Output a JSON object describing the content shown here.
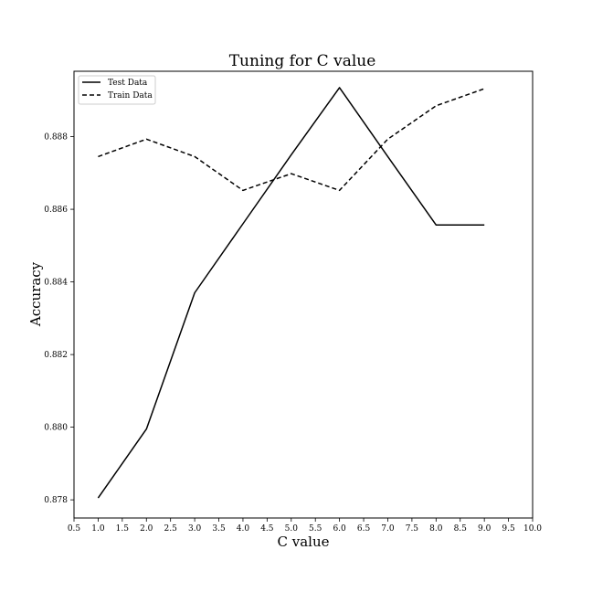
{
  "chart_data": {
    "type": "line",
    "title": "Tuning for C value",
    "xlabel": "C value",
    "ylabel": "Accuracy",
    "xlim": [
      0.5,
      10.0
    ],
    "ylim": [
      0.8775,
      0.8898
    ],
    "xticks": [
      "0.5",
      "1.0",
      "1.5",
      "2.0",
      "2.5",
      "3.0",
      "3.5",
      "4.0",
      "4.5",
      "5.0",
      "5.5",
      "6.0",
      "6.5",
      "7.0",
      "7.5",
      "8.0",
      "8.5",
      "9.0",
      "9.5",
      "10.0"
    ],
    "yticks": [
      "0.878",
      "0.880",
      "0.882",
      "0.884",
      "0.886",
      "0.888"
    ],
    "grid": false,
    "legend_position": "top-left",
    "x": [
      1,
      2,
      3,
      4,
      5,
      6,
      7,
      8,
      9
    ],
    "series": [
      {
        "name": "Test Data",
        "style": "solid",
        "color": "#000000",
        "values": [
          0.87805,
          0.87995,
          0.8837,
          0.8856,
          0.8875,
          0.88935,
          0.88745,
          0.88557,
          0.88557
        ]
      },
      {
        "name": "Train Data",
        "style": "dashed",
        "color": "#000000",
        "values": [
          0.88745,
          0.88793,
          0.88745,
          0.88652,
          0.88698,
          0.88652,
          0.88793,
          0.88885,
          0.88932
        ]
      }
    ]
  }
}
